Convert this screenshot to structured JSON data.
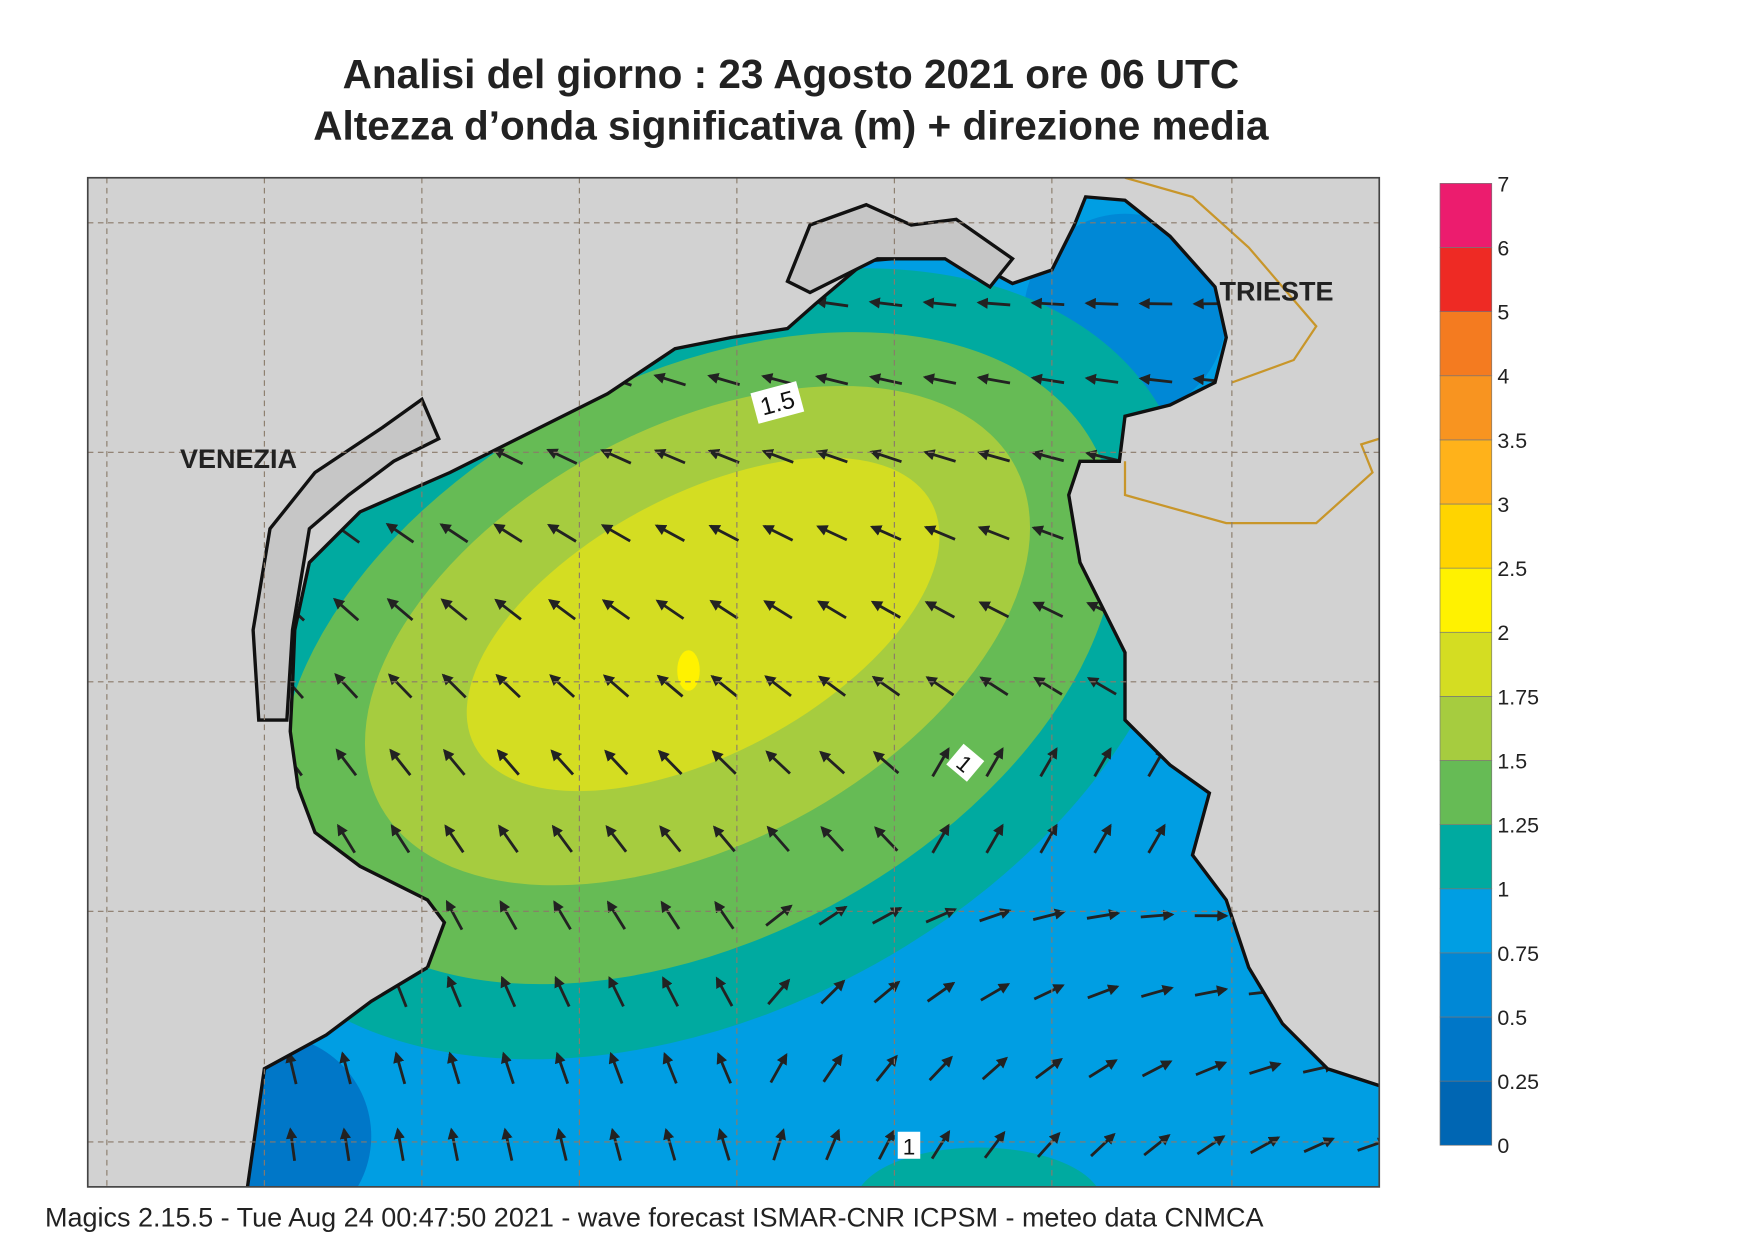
{
  "header": {
    "title": "Analisi del giorno :  23   Agosto  2021   ore 06 UTC",
    "subtitle": "Altezza d’onda significativa (m) + direzione media"
  },
  "map": {
    "places": [
      "VENEZIA",
      "TRIESTE"
    ],
    "contour_labels": [
      1.5,
      1,
      1
    ]
  },
  "legend": {
    "levels": [
      0,
      0.25,
      0.5,
      0.75,
      1,
      1.25,
      1.5,
      1.75,
      2,
      2.5,
      3,
      3.5,
      4,
      5,
      6,
      7
    ],
    "colors": [
      "#0066b3",
      "#0077c8",
      "#0088d6",
      "#009ee3",
      "#00aaa0",
      "#66bb55",
      "#a6cc3f",
      "#d4dd22",
      "#fff200",
      "#ffd400",
      "#ffb21a",
      "#f89420",
      "#f47b20",
      "#ee2a24",
      "#ec1c6e"
    ]
  },
  "footer": "Magics 2.15.5 - Tue Aug 24 00:47:50 2021 - wave forecast  ISMAR-CNR  ICPSM - meteo data   CNMCA"
}
